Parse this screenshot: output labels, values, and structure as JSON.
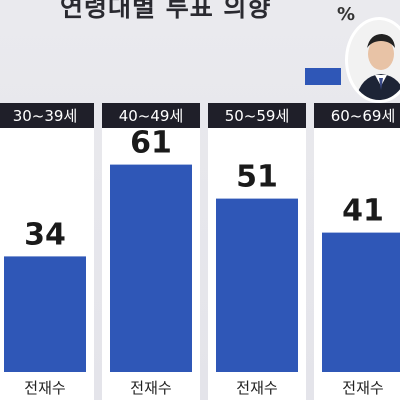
{
  "title": "연령대별 투표 의향",
  "unit": "%",
  "colors": {
    "bar": "#2f57b7",
    "panel": "#ffffff",
    "header": "#1f1f29",
    "header_text": "#ffffff",
    "label": "#1a1a1a"
  },
  "legend": {
    "swatch_color": "#2f57b7",
    "icon": "candidate-photo"
  },
  "chart_data": {
    "type": "bar",
    "title": "연령대별 투표 의향",
    "categories": [
      "30~39세",
      "40~49세",
      "50~59세",
      "60~69세"
    ],
    "series": [
      {
        "name": "전재수",
        "values": [
          34,
          61,
          51,
          41
        ]
      }
    ],
    "ylim": [
      0,
      80
    ],
    "xlabel": "",
    "ylabel": "",
    "grid": false,
    "legend_position": "top-right"
  }
}
